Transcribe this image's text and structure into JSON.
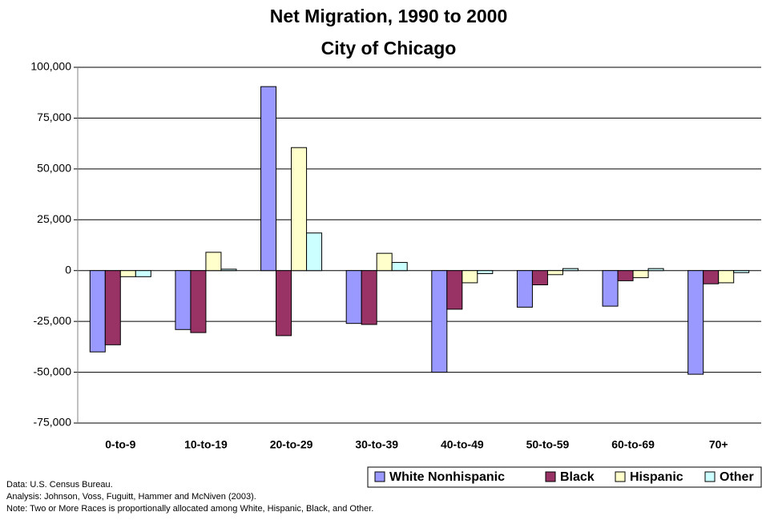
{
  "chart_data": {
    "type": "bar",
    "title": "Net Migration, 1990 to 2000",
    "subtitle": "City of Chicago",
    "categories": [
      "0-to-9",
      "10-to-19",
      "20-to-29",
      "30-to-39",
      "40-to-49",
      "50-to-59",
      "60-to-69",
      "70+"
    ],
    "series": [
      {
        "name": "White Nonhispanic",
        "color": "#9999ff",
        "values": [
          -40000,
          -29000,
          90500,
          -26000,
          -50000,
          -18000,
          -17500,
          -51000
        ]
      },
      {
        "name": "Black",
        "color": "#993366",
        "values": [
          -36500,
          -30500,
          -32000,
          -26500,
          -19000,
          -7000,
          -5000,
          -6500
        ]
      },
      {
        "name": "Hispanic",
        "color": "#ffffcc",
        "values": [
          -3000,
          9000,
          60500,
          8500,
          -6000,
          -2000,
          -3500,
          -6000
        ]
      },
      {
        "name": "Other",
        "color": "#ccffff",
        "values": [
          -3000,
          700,
          18500,
          4000,
          -1500,
          1000,
          1000,
          -1000
        ]
      }
    ],
    "ylim": [
      -75000,
      100000
    ],
    "yticks": [
      {
        "value": -75000,
        "label": "-75,000"
      },
      {
        "value": -50000,
        "label": "-50,000"
      },
      {
        "value": -25000,
        "label": "-25,000"
      },
      0,
      {
        "value": 25000,
        "label": "25,000"
      },
      {
        "value": 50000,
        "label": "50,000"
      },
      {
        "value": 75000,
        "label": "75,000"
      },
      {
        "value": 100000,
        "label": "100,000"
      }
    ],
    "grid": true,
    "legend": "bottom-right",
    "notes": [
      "Data: U.S. Census Bureau.",
      "Analysis: Johnson, Voss, Fuguitt, Hammer and McNiven (2003).",
      "Note: Two or More Races is proportionally allocated among White, Hispanic, Black, and Other."
    ]
  }
}
